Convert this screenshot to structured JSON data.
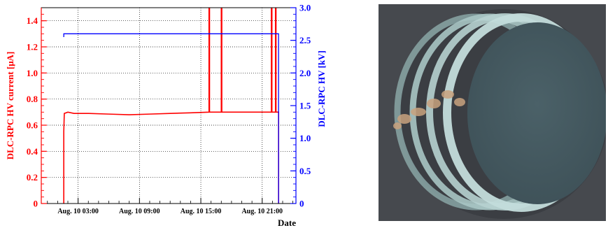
{
  "chart_data": [
    {
      "type": "line",
      "xlabel": "Date",
      "x_ticks": [
        "Aug. 10 03:00",
        "Aug. 10 09:00",
        "Aug. 10 15:00",
        "Aug. 10 21:00"
      ],
      "x_tick_hours": [
        3,
        9,
        15,
        21
      ],
      "xlim_hours": [
        -0.6,
        24.3
      ],
      "grid": true,
      "left_axis": {
        "label": "DLC-RPC HV current [μA]",
        "color": "#ff0000",
        "ylim": [
          0,
          1.5
        ],
        "ticks": [
          "0",
          "0.2",
          "0.4",
          "0.6",
          "0.8",
          "1.0",
          "1.2",
          "1.4"
        ],
        "tick_values": [
          0,
          0.2,
          0.4,
          0.6,
          0.8,
          1.0,
          1.2,
          1.4
        ]
      },
      "right_axis": {
        "label": "DLC-RPC HV [kV]",
        "color": "#0000ff",
        "ylim": [
          0,
          3.0
        ],
        "ticks": [
          "0",
          "0.5",
          "1.0",
          "1.5",
          "2.0",
          "2.5",
          "3.0"
        ],
        "tick_values": [
          0,
          0.5,
          1.0,
          1.5,
          2.0,
          2.5,
          3.0
        ]
      },
      "series": [
        {
          "axis": "left",
          "color": "#ff0000",
          "points": [
            [
              1.6,
              0.0
            ],
            [
              1.6,
              0.55
            ],
            [
              1.65,
              0.69
            ],
            [
              2.0,
              0.7
            ],
            [
              2.6,
              0.69
            ],
            [
              4.0,
              0.69
            ],
            [
              6.0,
              0.685
            ],
            [
              8.0,
              0.68
            ],
            [
              10.0,
              0.685
            ],
            [
              12.0,
              0.69
            ],
            [
              14.0,
              0.695
            ],
            [
              15.8,
              0.7
            ],
            [
              15.8,
              1.5
            ],
            [
              15.85,
              1.5
            ],
            [
              15.85,
              0.7
            ],
            [
              17.0,
              0.7
            ],
            [
              17.0,
              1.5
            ],
            [
              17.05,
              1.5
            ],
            [
              17.05,
              0.7
            ],
            [
              19.0,
              0.7
            ],
            [
              20.0,
              0.7
            ],
            [
              21.0,
              0.7
            ],
            [
              21.9,
              0.7
            ],
            [
              21.9,
              1.5
            ],
            [
              21.95,
              1.5
            ],
            [
              21.95,
              0.7
            ],
            [
              22.3,
              0.7
            ],
            [
              22.3,
              1.5
            ],
            [
              22.35,
              1.5
            ],
            [
              22.35,
              0.7
            ],
            [
              22.6,
              0.7
            ],
            [
              22.6,
              0.0
            ]
          ]
        },
        {
          "axis": "right",
          "color": "#0000ff",
          "points": [
            [
              1.6,
              2.55
            ],
            [
              1.6,
              2.6
            ],
            [
              1.9,
              2.6
            ],
            [
              22.6,
              2.6
            ],
            [
              22.6,
              0.0
            ]
          ]
        }
      ]
    }
  ],
  "photo": {
    "background": "#46494e",
    "disk_color": "#45575f",
    "ring_color": "#a9c5c4",
    "spot_color": "#c9a27e"
  }
}
